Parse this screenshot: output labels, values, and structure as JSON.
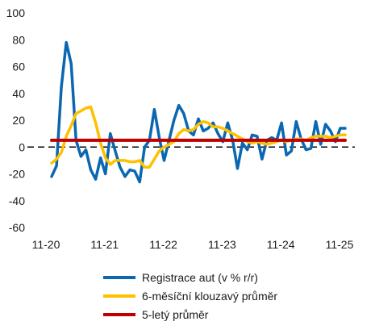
{
  "chart_data": {
    "type": "line",
    "title": "",
    "xlabel": "",
    "ylabel": "",
    "ylim": [
      -60,
      100
    ],
    "yticks": [
      -60,
      -40,
      -20,
      0,
      20,
      40,
      60,
      80,
      100
    ],
    "xticks": [
      "11-20",
      "11-21",
      "11-22",
      "11-23",
      "11-24",
      "11-25"
    ],
    "grid": false,
    "legend_position": "bottom",
    "x": [
      "11-20",
      "12-20",
      "01-21",
      "02-21",
      "03-21",
      "04-21",
      "05-21",
      "06-21",
      "07-21",
      "08-21",
      "09-21",
      "10-21",
      "11-21",
      "12-21",
      "01-22",
      "02-22",
      "03-22",
      "04-22",
      "05-22",
      "06-22",
      "07-22",
      "08-22",
      "09-22",
      "10-22",
      "11-22",
      "12-22",
      "01-23",
      "02-23",
      "03-23",
      "04-23",
      "05-23",
      "06-23",
      "07-23",
      "08-23",
      "09-23",
      "10-23",
      "11-23",
      "12-23",
      "01-24",
      "02-24",
      "03-24",
      "04-24",
      "05-24",
      "06-24",
      "07-24",
      "08-24",
      "09-24",
      "10-24",
      "11-24",
      "12-24",
      "01-25",
      "02-25",
      "03-25",
      "04-25",
      "05-25",
      "06-25",
      "07-25",
      "08-25",
      "09-25",
      "10-25",
      "11-25"
    ],
    "series": [
      {
        "name": "Registrace aut (v % r/r)",
        "color": "#0a67b2",
        "values": [
          -22,
          -14,
          45,
          78,
          62,
          5,
          -7,
          -2,
          -17,
          -24,
          -8,
          -20,
          10,
          -3,
          -15,
          -22,
          -17,
          -18,
          -26,
          0,
          5,
          28,
          7,
          -10,
          5,
          20,
          31,
          25,
          12,
          9,
          21,
          12,
          14,
          18,
          10,
          4,
          18,
          5,
          -16,
          3,
          -2,
          9,
          8,
          -9,
          5,
          7,
          5,
          18,
          -6,
          -3,
          19,
          6,
          -2,
          -1,
          19,
          2,
          17,
          12,
          4,
          14,
          14
        ]
      },
      {
        "name": "6-měsíční klouzavý průměr",
        "color": "#ffc000",
        "values": [
          -12,
          -9,
          -4,
          8,
          16,
          25,
          27,
          29,
          30,
          18,
          3,
          -8,
          -13,
          -10,
          -10,
          -10,
          -11,
          -11,
          -10,
          -15,
          -15,
          -9,
          -3,
          0,
          2,
          4,
          10,
          13,
          12,
          13,
          17,
          19,
          18,
          15,
          15,
          14,
          12,
          10,
          8,
          6,
          4,
          3,
          4,
          3,
          2,
          3,
          4,
          5,
          4,
          5,
          6,
          6,
          5,
          7,
          8,
          8,
          8,
          7,
          8,
          9,
          9
        ]
      },
      {
        "name": "5-letý průměr",
        "color": "#c00000",
        "values": [
          5,
          5,
          5,
          5,
          5,
          5,
          5,
          5,
          5,
          5,
          5,
          5,
          5,
          5,
          5,
          5,
          5,
          5,
          5,
          5,
          5,
          5,
          5,
          5,
          5,
          5,
          5,
          5,
          5,
          5,
          5,
          5,
          5,
          5,
          5,
          5,
          5,
          5,
          5,
          5,
          5,
          5,
          5,
          5,
          5,
          5,
          5,
          5,
          5,
          5,
          5,
          5,
          5,
          5,
          5,
          5,
          5,
          5,
          5,
          5,
          5
        ]
      }
    ],
    "reference_line": {
      "y": 0,
      "style": "dashed",
      "color": "#000000"
    }
  }
}
